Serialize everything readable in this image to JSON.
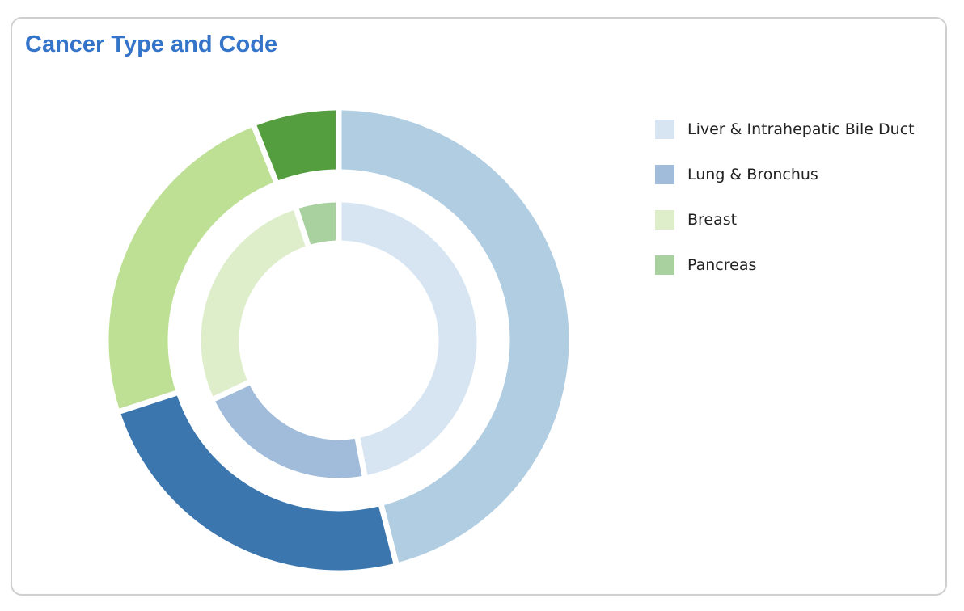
{
  "card": {
    "title": "Cancer Type and Code"
  },
  "chart_data": {
    "type": "pie",
    "variant": "nested-donut",
    "title": "Cancer Type and Code",
    "categories": [
      "Liver & Intrahepatic Bile Duct",
      "Lung & Bronchus",
      "Breast",
      "Pancreas"
    ],
    "rings": [
      {
        "ring": "inner",
        "values": [
          47,
          21,
          27,
          5
        ],
        "colors": [
          "#d6e5f1",
          "#a0bcda",
          "#deeecb",
          "#a9d19f"
        ]
      },
      {
        "ring": "outer",
        "values": [
          46,
          24,
          24,
          6
        ],
        "colors": [
          "#b0cde2",
          "#3b76af",
          "#bee094",
          "#559e3f"
        ]
      }
    ],
    "legend": {
      "placement": "right",
      "items": [
        {
          "label": "Liver & Intrahepatic Bile Duct",
          "color": "#d6e5f1"
        },
        {
          "label": "Lung & Bronchus",
          "color": "#a0bcda"
        },
        {
          "label": "Breast",
          "color": "#deeecb"
        },
        {
          "label": "Pancreas",
          "color": "#a9d19f"
        }
      ]
    }
  }
}
